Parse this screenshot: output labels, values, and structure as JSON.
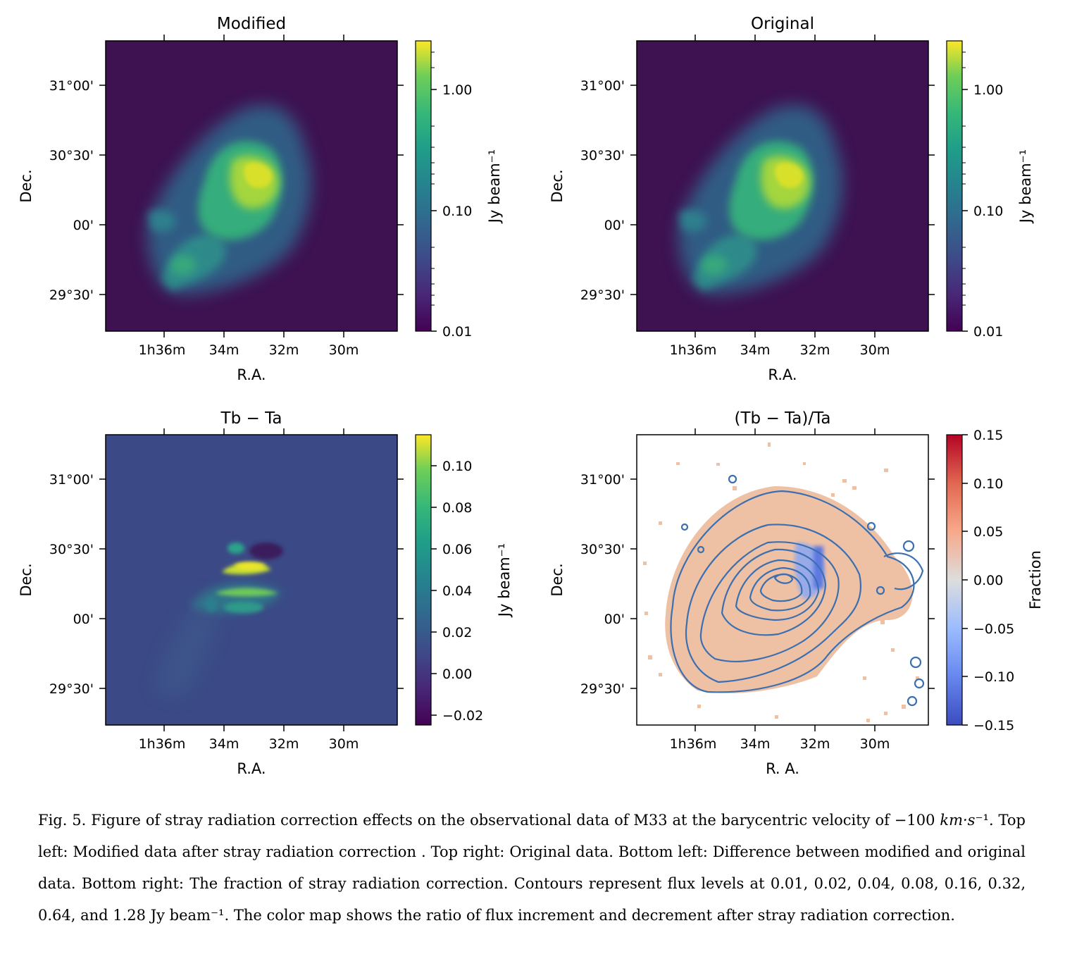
{
  "panels": [
    {
      "title": "Modified",
      "xlabel": "R.A.",
      "ylabel": "Dec.",
      "xticks": [
        "1h36m",
        "34m",
        "32m",
        "30m"
      ],
      "yticks": [
        "31°00'",
        "30°30'",
        "00'",
        "29°30'"
      ],
      "colorbar": {
        "label": "Jy beam⁻¹",
        "scale": "log",
        "ticks": [
          "1.00",
          "0.10",
          "0.01"
        ],
        "range": [
          0.01,
          2.3
        ],
        "colormap": "viridis"
      }
    },
    {
      "title": "Original",
      "xlabel": "R.A.",
      "ylabel": "Dec.",
      "xticks": [
        "1h36m",
        "34m",
        "32m",
        "30m"
      ],
      "yticks": [
        "31°00'",
        "30°30'",
        "00'",
        "29°30'"
      ],
      "colorbar": {
        "label": "Jy beam⁻¹",
        "scale": "log",
        "ticks": [
          "1.00",
          "0.10",
          "0.01"
        ],
        "range": [
          0.01,
          2.3
        ],
        "colormap": "viridis"
      }
    },
    {
      "title": "Tb − Ta",
      "xlabel": "R.A.",
      "ylabel": "Dec.",
      "xticks": [
        "1h36m",
        "34m",
        "32m",
        "30m"
      ],
      "yticks": [
        "31°00'",
        "30°30'",
        "00'",
        "29°30'"
      ],
      "colorbar": {
        "label": "Jy beam⁻¹",
        "scale": "linear",
        "ticks": [
          "0.10",
          "0.08",
          "0.06",
          "0.04",
          "0.02",
          "0.00",
          "−0.02"
        ],
        "range": [
          -0.025,
          0.115
        ],
        "colormap": "viridis"
      }
    },
    {
      "title": "(Tb − Ta)/Ta",
      "xlabel": "R. A.",
      "ylabel": "Dec.",
      "xticks": [
        "1h36m",
        "34m",
        "32m",
        "30m"
      ],
      "yticks": [
        "31°00'",
        "30°30'",
        "00'",
        "29°30'"
      ],
      "colorbar": {
        "label": "Fraction",
        "scale": "linear",
        "ticks": [
          "0.15",
          "0.10",
          "0.05",
          "0.00",
          "−0.05",
          "−0.10",
          "−0.15"
        ],
        "range": [
          -0.15,
          0.15
        ],
        "colormap": "coolwarm"
      }
    }
  ],
  "caption": {
    "part1": "Fig. 5. Figure of stray radiation correction effects on the observational data of M33 at the barycentric velocity of −100 ",
    "unit_italic": "km·s",
    "part2": "⁻¹. Top left: Modified data after stray radiation correction . Top right: Original data. Bottom left: Difference between modified and original data. Bottom right: The fraction of stray radiation correction. Contours represent flux levels at 0.01, 0.02, 0.04, 0.08, 0.16, 0.32, 0.64, and 1.28 Jy beam⁻¹. The color map shows the ratio of flux increment and decrement after stray radiation correction."
  },
  "colors": {
    "viridis_low": "#440154",
    "viridis_bg": "#3e1151",
    "viridis_mid": "#21918c",
    "viridis_high": "#fde725",
    "diff_bg": "#3b4a86",
    "coolwarm_low": "#3b4cc0",
    "coolwarm_mid": "#dddddd",
    "coolwarm_high": "#b40426",
    "contour": "#3b6fb0",
    "fraction_fill": "#efc1a4"
  }
}
